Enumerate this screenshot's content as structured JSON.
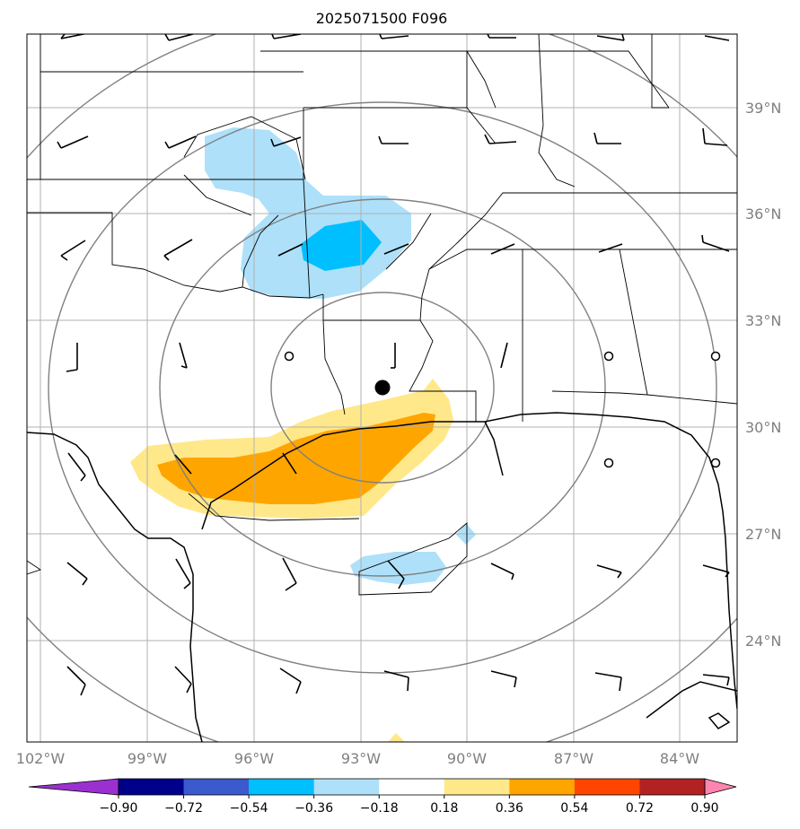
{
  "title": "2025071500 F096",
  "map": {
    "lat_ticks": [
      {
        "label": "39°N",
        "lat": 39
      },
      {
        "label": "36°N",
        "lat": 36
      },
      {
        "label": "33°N",
        "lat": 33
      },
      {
        "label": "30°N",
        "lat": 30
      },
      {
        "label": "27°N",
        "lat": 27
      },
      {
        "label": "24°N",
        "lat": 24
      }
    ],
    "lon_ticks": [
      {
        "label": "102°W",
        "lon": -102
      },
      {
        "label": "99°W",
        "lon": -99
      },
      {
        "label": "96°W",
        "lon": -96
      },
      {
        "label": "93°W",
        "lon": -93
      },
      {
        "label": "90°W",
        "lon": -90
      },
      {
        "label": "87°W",
        "lon": -87
      },
      {
        "label": "84°W",
        "lon": -84
      }
    ],
    "center_marker": {
      "lat": 31.1,
      "lon": -92.5
    },
    "range_rings_count": 4
  },
  "colorbar": {
    "labels": [
      "−0.90",
      "−0.72",
      "−0.54",
      "−0.36",
      "−0.18",
      "0.18",
      "0.36",
      "0.54",
      "0.72",
      "0.90"
    ],
    "colors": [
      "#9b30d0",
      "#00008b",
      "#3a5acd",
      "#00bfff",
      "#aee0fa",
      "#ffffff",
      "#ffe88a",
      "#ffa500",
      "#ff4500",
      "#b22222",
      "#ff85b0"
    ]
  },
  "colors": {
    "grid": "#b0b0b0",
    "rings": "#808080",
    "tick_label": "#7f7f7f",
    "neg_light": "#aee0fa",
    "neg_mid": "#00bfff",
    "pos_light": "#ffe88a",
    "pos_mid": "#ffa500"
  }
}
